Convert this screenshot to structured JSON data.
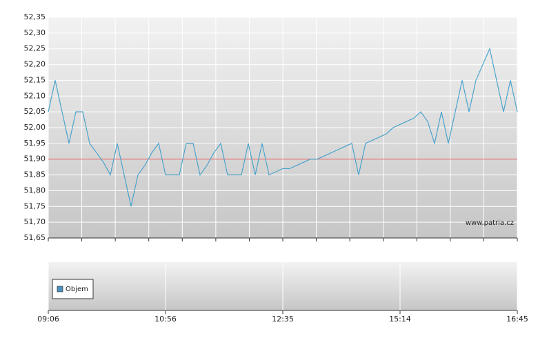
{
  "chart_data": [
    {
      "type": "line",
      "categories": [
        "09:06",
        null,
        null,
        null,
        null,
        null,
        null,
        null,
        null,
        null,
        null,
        null,
        null,
        null,
        null,
        null,
        null,
        "10:56",
        null,
        null,
        null,
        null,
        null,
        null,
        null,
        null,
        null,
        null,
        null,
        null,
        null,
        null,
        null,
        null,
        "12:35",
        null,
        null,
        null,
        null,
        null,
        null,
        null,
        null,
        null,
        null,
        null,
        null,
        null,
        null,
        null,
        null,
        "15:14",
        null,
        null,
        null,
        null,
        null,
        null,
        null,
        null,
        null,
        null,
        null,
        null,
        null,
        null,
        null,
        null,
        "16:45"
      ],
      "series": [
        {
          "color": "#4aa3cc",
          "values": [
            52.05,
            52.15,
            52.05,
            51.95,
            52.05,
            52.05,
            51.95,
            51.92,
            51.89,
            51.85,
            51.95,
            51.85,
            51.75,
            51.85,
            51.88,
            51.92,
            51.95,
            51.85,
            51.85,
            51.85,
            51.95,
            51.95,
            51.85,
            51.88,
            51.92,
            51.95,
            51.85,
            51.85,
            51.85,
            51.95,
            51.85,
            51.95,
            51.85,
            51.86,
            51.87,
            51.87,
            51.88,
            51.89,
            51.9,
            51.9,
            51.91,
            51.92,
            51.93,
            51.94,
            51.95,
            51.85,
            51.95,
            51.96,
            51.97,
            51.98,
            52.0,
            52.01,
            52.02,
            52.03,
            52.05,
            52.02,
            51.95,
            52.05,
            51.95,
            52.05,
            52.15,
            52.05,
            52.15,
            52.2,
            52.25,
            52.15,
            52.05,
            52.15,
            52.05
          ]
        }
      ],
      "reference_line": {
        "value": 51.9,
        "color": "#e05050"
      },
      "ylim": [
        51.65,
        52.35
      ],
      "yticks": [
        {
          "value": 51.65,
          "label": "51,65"
        },
        {
          "value": 51.7,
          "label": "51,70"
        },
        {
          "value": 51.75,
          "label": "51,75"
        },
        {
          "value": 51.8,
          "label": "51,80"
        },
        {
          "value": 51.85,
          "label": "51,85"
        },
        {
          "value": 51.9,
          "label": "51,90"
        },
        {
          "value": 51.95,
          "label": "51,95"
        },
        {
          "value": 52.0,
          "label": "52,00"
        },
        {
          "value": 52.05,
          "label": "52,05"
        },
        {
          "value": 52.1,
          "label": "52,10"
        },
        {
          "value": 52.15,
          "label": "52,15"
        },
        {
          "value": 52.2,
          "label": "52,20"
        },
        {
          "value": 52.25,
          "label": "52,25"
        },
        {
          "value": 52.3,
          "label": "52,30"
        },
        {
          "value": 52.35,
          "label": "52,35"
        }
      ],
      "grid": true,
      "watermark": "www.patria.cz"
    },
    {
      "type": "bar",
      "series": [
        {
          "name": "Objem",
          "color": "#4a90c0"
        }
      ],
      "legend": "upper left"
    }
  ]
}
